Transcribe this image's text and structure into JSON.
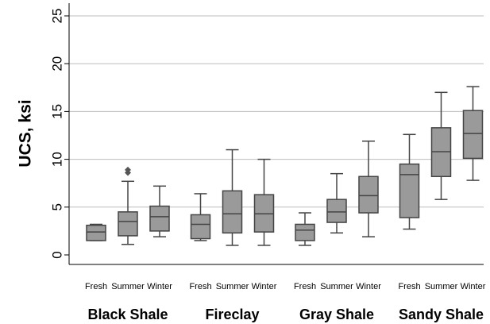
{
  "chart_data": {
    "type": "box",
    "ylabel": "UCS, ksi",
    "ylim": [
      -1,
      26
    ],
    "yticks": [
      0,
      5,
      10,
      15,
      20,
      25
    ],
    "grid": "horizontal",
    "box_color": "#9a9a9a",
    "line_color": "#444444",
    "groups": [
      {
        "name": "Black Shale",
        "boxes": [
          {
            "label": "Fresh",
            "whisker_low": 1.5,
            "q1": 1.5,
            "median": 2.4,
            "q3": 3.1,
            "whisker_high": 3.2,
            "outliers": []
          },
          {
            "label": "Summer",
            "whisker_low": 1.1,
            "q1": 2.0,
            "median": 3.5,
            "q3": 4.5,
            "whisker_high": 7.7,
            "outliers": [
              8.6,
              8.9
            ]
          },
          {
            "label": "Winter",
            "whisker_low": 1.9,
            "q1": 2.5,
            "median": 4.0,
            "q3": 5.1,
            "whisker_high": 7.2,
            "outliers": []
          }
        ]
      },
      {
        "name": "Fireclay",
        "boxes": [
          {
            "label": "Fresh",
            "whisker_low": 1.5,
            "q1": 1.7,
            "median": 3.2,
            "q3": 4.2,
            "whisker_high": 6.4,
            "outliers": []
          },
          {
            "label": "Summer",
            "whisker_low": 1.0,
            "q1": 2.3,
            "median": 4.3,
            "q3": 6.7,
            "whisker_high": 11.0,
            "outliers": []
          },
          {
            "label": "Winter",
            "whisker_low": 1.0,
            "q1": 2.4,
            "median": 4.3,
            "q3": 6.3,
            "whisker_high": 10.0,
            "outliers": []
          }
        ]
      },
      {
        "name": "Gray Shale",
        "boxes": [
          {
            "label": "Fresh",
            "whisker_low": 1.0,
            "q1": 1.5,
            "median": 2.6,
            "q3": 3.2,
            "whisker_high": 4.4,
            "outliers": []
          },
          {
            "label": "Summer",
            "whisker_low": 2.3,
            "q1": 3.4,
            "median": 4.5,
            "q3": 5.8,
            "whisker_high": 8.5,
            "outliers": []
          },
          {
            "label": "Winter",
            "whisker_low": 1.9,
            "q1": 4.4,
            "median": 6.2,
            "q3": 8.2,
            "whisker_high": 11.9,
            "outliers": []
          }
        ]
      },
      {
        "name": "Sandy Shale",
        "boxes": [
          {
            "label": "Fresh",
            "whisker_low": 2.7,
            "q1": 3.9,
            "median": 8.4,
            "q3": 9.5,
            "whisker_high": 12.6,
            "outliers": []
          },
          {
            "label": "Summer",
            "whisker_low": 5.8,
            "q1": 8.2,
            "median": 10.8,
            "q3": 13.3,
            "whisker_high": 17.0,
            "outliers": []
          },
          {
            "label": "Winter",
            "whisker_low": 7.8,
            "q1": 10.1,
            "median": 12.7,
            "q3": 15.1,
            "whisker_high": 17.6,
            "outliers": []
          }
        ]
      }
    ]
  }
}
